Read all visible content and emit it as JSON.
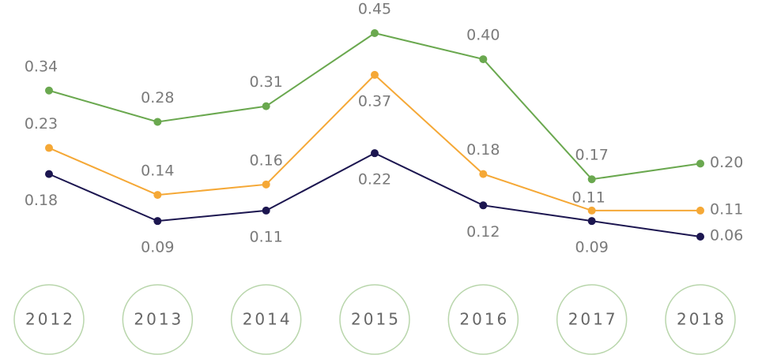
{
  "chart_data": {
    "type": "line",
    "categories": [
      "2012",
      "2013",
      "2014",
      "2015",
      "2016",
      "2017",
      "2018"
    ],
    "series": [
      {
        "color": "#6aa84f",
        "values": [
          0.34,
          0.28,
          0.31,
          0.45,
          0.4,
          0.17,
          0.2
        ],
        "value_labels": [
          "0.34",
          "0.28",
          "0.31",
          "0.45",
          "0.40",
          "0.17",
          "0.20"
        ]
      },
      {
        "color": "#f5a836",
        "values": [
          0.23,
          0.14,
          0.16,
          0.37,
          0.18,
          0.11,
          0.11
        ],
        "value_labels": [
          "0.23",
          "0.14",
          "0.16",
          "0.37",
          "0.18",
          "0.11",
          "0.11"
        ]
      },
      {
        "color": "#1c1650",
        "values": [
          0.18,
          0.09,
          0.11,
          0.22,
          0.12,
          0.09,
          0.06
        ],
        "value_labels": [
          "0.18",
          "0.09",
          "0.11",
          "0.22",
          "0.12",
          "0.09",
          "0.06"
        ]
      }
    ]
  }
}
